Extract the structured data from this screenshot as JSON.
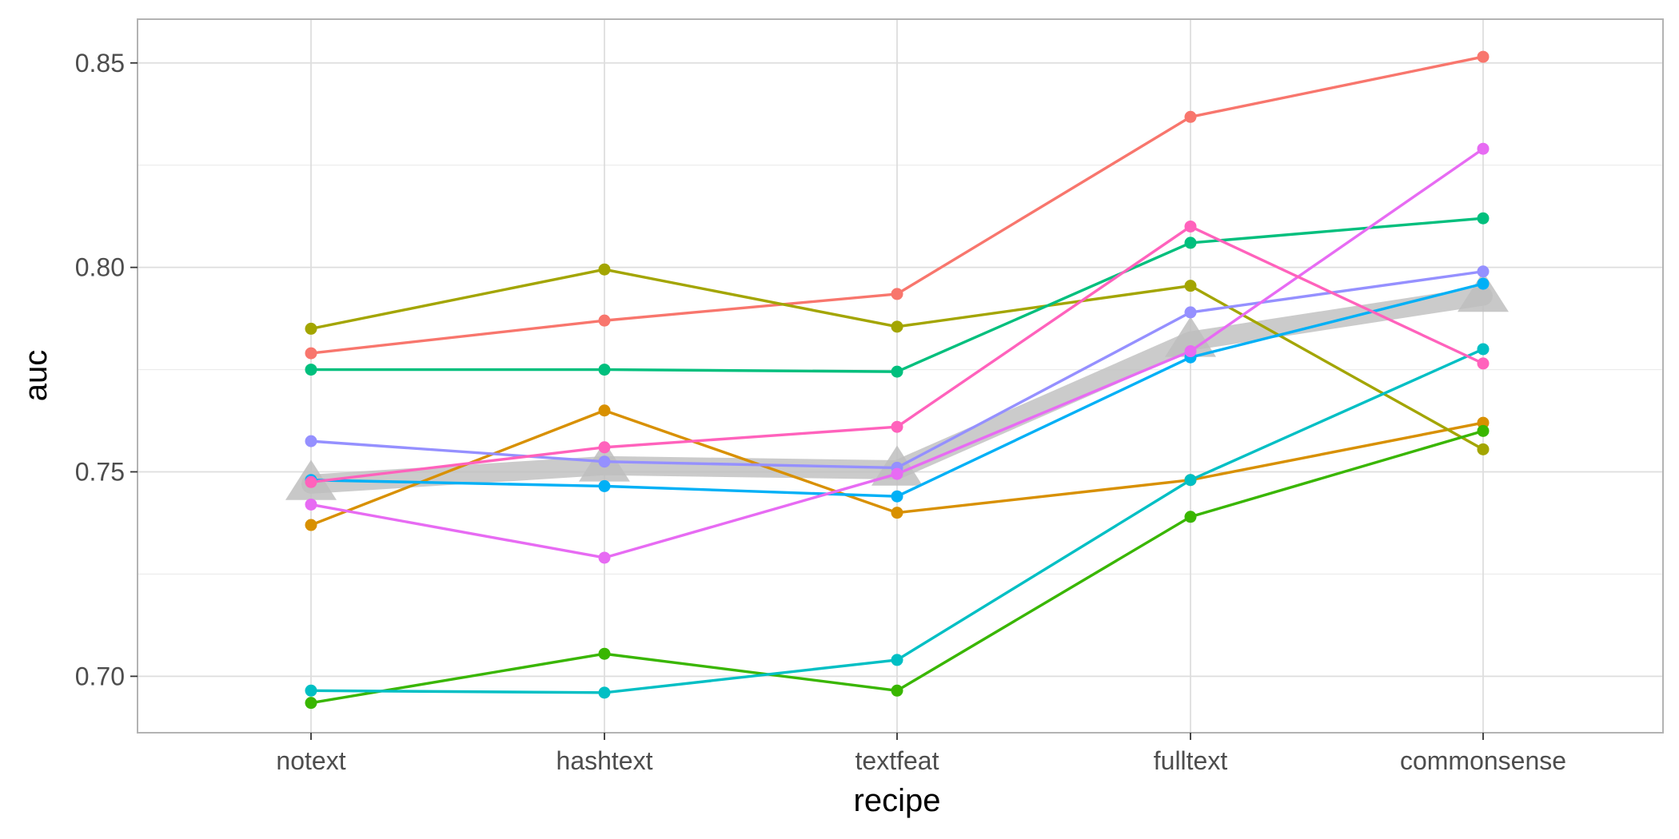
{
  "chart_data": {
    "type": "line",
    "title": "",
    "xlabel": "recipe",
    "ylabel": "auc",
    "categories": [
      "notext",
      "hashtext",
      "textfeat",
      "fulltext",
      "commonsense"
    ],
    "y_ticks": [
      "0.70",
      "0.75",
      "0.80",
      "0.85"
    ],
    "y_tick_values": [
      0.7,
      0.75,
      0.8,
      0.85
    ],
    "ylim": [
      0.6862,
      0.8607
    ],
    "grid": true,
    "legend": "none",
    "series": [
      {
        "color": "#F8766D",
        "values": [
          0.779,
          0.787,
          0.7935,
          0.8368,
          0.8515
        ]
      },
      {
        "color": "#D89000",
        "values": [
          0.737,
          0.765,
          0.74,
          0.748,
          0.762
        ]
      },
      {
        "color": "#A3A500",
        "values": [
          0.785,
          0.7995,
          0.7855,
          0.7955,
          0.7555
        ]
      },
      {
        "color": "#39B600",
        "values": [
          0.6935,
          0.7055,
          0.6965,
          0.739,
          0.76
        ]
      },
      {
        "color": "#00BF7D",
        "values": [
          0.775,
          0.775,
          0.7745,
          0.806,
          0.812
        ]
      },
      {
        "color": "#00BFC4",
        "values": [
          0.6965,
          0.696,
          0.704,
          0.748,
          0.78
        ]
      },
      {
        "color": "#00B0F6",
        "values": [
          0.748,
          0.7465,
          0.744,
          0.778,
          0.796
        ]
      },
      {
        "color": "#9590FF",
        "values": [
          0.7575,
          0.7525,
          0.751,
          0.789,
          0.799
        ]
      },
      {
        "color": "#E76BF3",
        "values": [
          0.742,
          0.729,
          0.7495,
          0.7795,
          0.829
        ]
      },
      {
        "color": "#FF62BC",
        "values": [
          0.7475,
          0.756,
          0.761,
          0.81,
          0.7765
        ]
      }
    ],
    "mean_series": {
      "color": "#BEBEBE",
      "values": [
        0.747,
        0.7515,
        0.7505,
        0.782,
        0.793
      ]
    }
  }
}
